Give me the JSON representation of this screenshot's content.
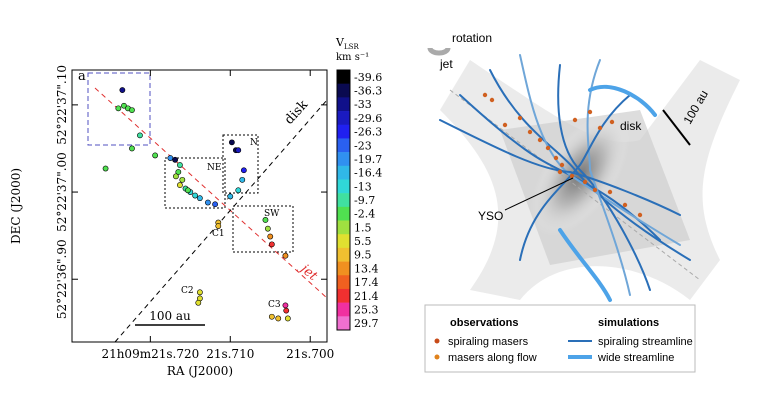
{
  "chart_data": {
    "type": "scatter",
    "x_label": "RA (J2000)",
    "y_label": "DEC (J2000)",
    "x": [
      21.7235,
      21.724,
      21.7233,
      21.7228,
      21.7223,
      21.7213,
      21.7223,
      21.7256,
      21.7194,
      21.7175,
      21.7169,
      21.7163,
      21.7165,
      21.716,
      21.7156,
      21.715,
      21.7144,
      21.7138,
      21.7128,
      21.7119,
      21.7168,
      21.7163,
      21.7153,
      21.71,
      21.7098,
      21.7093,
      21.709,
      21.7083,
      21.7085,
      21.709,
      21.7115,
      21.7115,
      21.7056,
      21.7053,
      21.705,
      21.7048,
      21.7031,
      21.7138,
      21.7138,
      21.714,
      21.7031,
      21.703,
      21.7048,
      21.704,
      21.7028
    ],
    "values": [
      37.117,
      37.096,
      37.099,
      37.096,
      37.094,
      37.065,
      37.05,
      37.027,
      37.042,
      37.039,
      37.037,
      37.031,
      37.023,
      37.014,
      37.004,
      37.0,
      36.996,
      36.993,
      36.988,
      36.986,
      37.018,
      37.008,
      37.002,
      36.995,
      37.057,
      37.048,
      37.048,
      37.025,
      37.014,
      37.002,
      36.965,
      36.961,
      36.968,
      36.958,
      36.949,
      36.94,
      36.927,
      36.885,
      36.878,
      36.873,
      36.87,
      36.864,
      36.857,
      36.855,
      36.855
    ],
    "velocities": [
      -33,
      -2,
      -5,
      -3,
      -6,
      -7,
      -4,
      -3,
      -4,
      -20,
      -35,
      -8,
      -5,
      0,
      -10,
      -12,
      -14,
      -16,
      -20,
      -22,
      2,
      4,
      -1,
      -18,
      -36,
      -37,
      -30,
      -25,
      -15,
      -13,
      10,
      8,
      -4,
      2,
      14,
      20,
      13,
      5,
      6,
      7,
      25,
      22,
      9,
      11,
      5
    ],
    "xlim": [
      21.7298,
      21.6979
    ],
    "ylim": [
      37.14,
      36.828
    ],
    "xticks": [
      {
        "value": 21.72,
        "label": "21h09m21s.720"
      },
      {
        "value": 21.71,
        "label": "21s.710"
      },
      {
        "value": 21.7,
        "label": "21s.700"
      }
    ],
    "yticks": [
      {
        "value": 37.1,
        "label": "52°22'37\".10"
      },
      {
        "value": 37.0,
        "label": "52°22'37\".00"
      },
      {
        "value": 36.9,
        "label": "52°22'36\".90"
      }
    ],
    "colorbar": {
      "symbol": "V",
      "subscript": "LSR",
      "unit": "km s⁻¹",
      "ticks": [
        -39.6,
        -36.3,
        -33,
        -29.6,
        -26.3,
        -23,
        -19.7,
        -16.4,
        -13,
        -9.7,
        -2.4,
        1.5,
        5.5,
        9.5,
        13.4,
        17.4,
        21.4,
        25.3,
        29.7
      ],
      "colors": [
        "#000000",
        "#0a0a50",
        "#10108a",
        "#1a1ac0",
        "#2020f0",
        "#2a60f0",
        "#3090f0",
        "#30b8e8",
        "#30d8d8",
        "#40e0a0",
        "#50e050",
        "#a0e040",
        "#e0e030",
        "#f0c030",
        "#f09020",
        "#f06020",
        "#f03030",
        "#f030a0",
        "#f070d0"
      ]
    },
    "annotations": {
      "panel": "a",
      "disk": "disk",
      "jet": "jet",
      "ne": "NE",
      "n": "N",
      "sw": "SW",
      "c1": "C1",
      "c2": "C2",
      "c3": "C3",
      "scale": "100 au"
    }
  },
  "diagram": {
    "labels": {
      "rotation": "rotation",
      "jet": "jet",
      "disk": "disk",
      "scale": "100 au",
      "yso": "YSO"
    },
    "legend": {
      "observations": "observations",
      "spiraling_masers": "spiraling masers",
      "masers_along_flow": "masers along flow",
      "simulations": "simulations",
      "spiraling_streamline": "spiraling streamline",
      "wide_streamline": "wide streamline"
    }
  }
}
